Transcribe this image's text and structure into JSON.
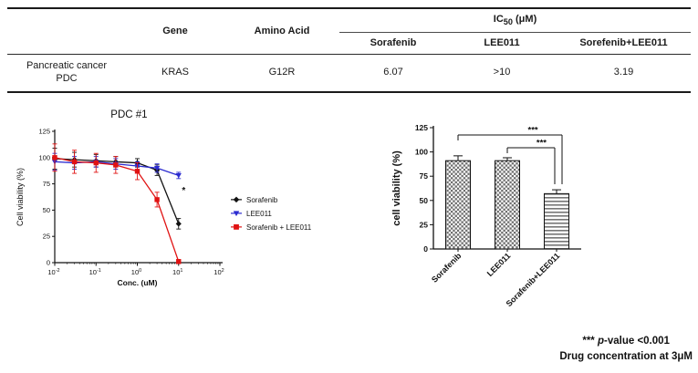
{
  "table": {
    "headers": {
      "gene": "Gene",
      "amino_acid": "Amino Acid",
      "ic50_prefix": "IC",
      "ic50_sub": "50",
      "ic50_suffix": " (μM)",
      "drugs": [
        "Sorafenib",
        "LEE011",
        "Sorefenib+LEE011"
      ]
    },
    "row": {
      "label_line1": "Pancreatic cancer",
      "label_line2": "PDC",
      "gene": "KRAS",
      "amino_acid": "G12R",
      "sorafenib": "6.07",
      "lee011": ">10",
      "combo": "3.19"
    }
  },
  "chart_data": [
    {
      "type": "line",
      "title": "PDC #1",
      "xlabel": "Conc. (uM)",
      "ylabel": "Cell viability (%)",
      "x_scale": "log",
      "xlim": [
        0.01,
        100
      ],
      "ylim": [
        0,
        125
      ],
      "yticks": [
        0,
        25,
        50,
        75,
        100,
        125
      ],
      "legend_position": "right",
      "series": [
        {
          "name": "Sorafenib",
          "color": "#111111",
          "marker": "diamond",
          "x": [
            0.01,
            0.03,
            0.1,
            0.3,
            1,
            3,
            10
          ],
          "y": [
            99,
            98,
            97,
            96,
            95,
            88,
            37
          ],
          "yerr": [
            10,
            7,
            6,
            5,
            4,
            5,
            5
          ]
        },
        {
          "name": "LEE011",
          "color": "#2b2bd0",
          "marker": "triangle-down",
          "x": [
            0.01,
            0.03,
            0.1,
            0.3,
            1,
            3,
            10
          ],
          "y": [
            96,
            95,
            96,
            94,
            92,
            90,
            83
          ],
          "yerr": [
            8,
            6,
            5,
            5,
            4,
            4,
            3
          ]
        },
        {
          "name": "Sorafenib + LEE011",
          "color": "#e01212",
          "marker": "square",
          "x": [
            0.01,
            0.03,
            0.1,
            0.3,
            1,
            3,
            10
          ],
          "y": [
            100,
            96,
            95,
            93,
            87,
            60,
            1
          ],
          "yerr": [
            13,
            11,
            9,
            8,
            8,
            7,
            2
          ]
        }
      ],
      "annotation": {
        "text": "*",
        "x": 12,
        "y": 66
      }
    },
    {
      "type": "bar",
      "ylabel": "cell viability (%)",
      "categories": [
        "Sorafenib",
        "LEE011",
        "Sorafenib+LEE011"
      ],
      "values": [
        91,
        91,
        57
      ],
      "errors": [
        5,
        3,
        4
      ],
      "patterns": [
        "checker",
        "checker",
        "hlines"
      ],
      "ylim": [
        0,
        125
      ],
      "yticks": [
        0,
        25,
        50,
        75,
        100,
        125
      ],
      "significance": [
        {
          "from": 0,
          "to": 2,
          "label": "***"
        },
        {
          "from": 1,
          "to": 2,
          "label": "***"
        }
      ]
    }
  ],
  "footnote": {
    "stars": "***",
    "p_italic": "p",
    "rest": "-value <0.001",
    "line2": "Drug concentration at 3μM"
  }
}
